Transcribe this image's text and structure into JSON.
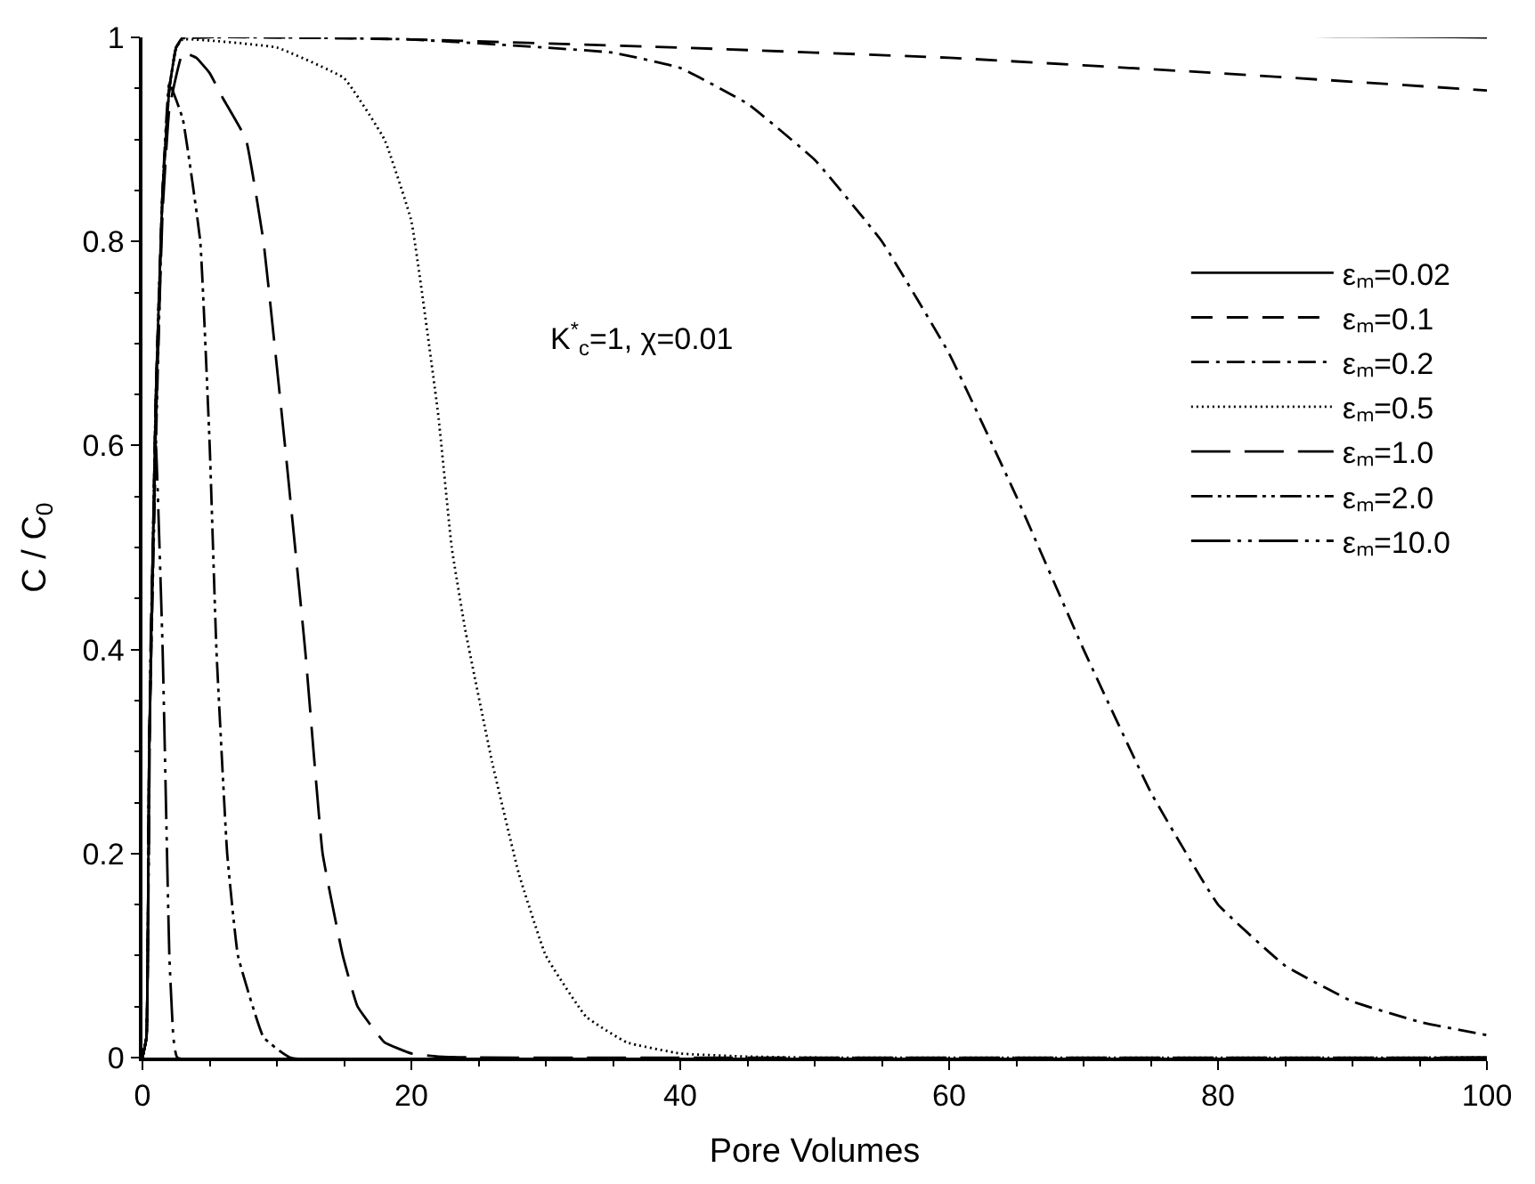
{
  "chart_data": {
    "type": "line",
    "xlabel": "Pore Volumes",
    "ylabel": "C / C$_{0}$",
    "xlim": [
      0,
      100
    ],
    "xticks": [
      0,
      20,
      40,
      60,
      80,
      100
    ],
    "ylim": [
      0,
      1
    ],
    "yticks": [
      0,
      0.2,
      0.4,
      0.6,
      0.8,
      1
    ],
    "legend": "right",
    "marker": "none",
    "annotations": [
      "K$^{*}$$_{c}$=1, χ=0.01"
    ],
    "series": [
      {
        "name": "εₘ=0.02",
        "color": "#000000",
        "line_style": "solid",
        "x": [
          0,
          0.3,
          0.5,
          1,
          1.5,
          2,
          2.5,
          3,
          100
        ],
        "values": [
          0,
          0.02,
          0.3,
          0.65,
          0.85,
          0.95,
          0.99,
          1,
          1
        ]
      },
      {
        "name": "εₘ=0.1",
        "color": "#000000",
        "line_style": "dashed",
        "x": [
          0,
          0.3,
          0.5,
          1,
          1.5,
          2,
          2.5,
          3,
          20,
          40,
          60,
          80,
          100
        ],
        "values": [
          0,
          0.02,
          0.3,
          0.65,
          0.85,
          0.95,
          0.99,
          0.999,
          0.998,
          0.99,
          0.98,
          0.965,
          0.948
        ]
      },
      {
        "name": "εₘ=0.2",
        "color": "#000000",
        "line_style": "dashdot",
        "x": [
          0,
          0.3,
          0.5,
          1,
          1.5,
          2,
          2.5,
          3,
          10,
          20,
          30,
          35,
          40,
          45,
          50,
          55,
          60,
          65,
          70,
          75,
          80,
          85,
          90,
          95,
          100
        ],
        "values": [
          0,
          0.02,
          0.3,
          0.65,
          0.85,
          0.95,
          0.99,
          0.999,
          1,
          0.998,
          0.99,
          0.985,
          0.97,
          0.935,
          0.88,
          0.8,
          0.69,
          0.55,
          0.4,
          0.26,
          0.15,
          0.09,
          0.055,
          0.035,
          0.022
        ]
      },
      {
        "name": "εₘ=0.5",
        "color": "#000000",
        "line_style": "dotted",
        "x": [
          0,
          0.3,
          0.5,
          1,
          1.5,
          2,
          2.5,
          3,
          10,
          15,
          18,
          20,
          22,
          23,
          24,
          26,
          28,
          30,
          33,
          36,
          40,
          45,
          50,
          100
        ],
        "values": [
          0,
          0.02,
          0.3,
          0.65,
          0.85,
          0.95,
          0.99,
          0.998,
          0.99,
          0.96,
          0.9,
          0.82,
          0.63,
          0.5,
          0.42,
          0.29,
          0.18,
          0.1,
          0.04,
          0.015,
          0.004,
          0.001,
          0,
          0
        ]
      },
      {
        "name": "εₘ=1.0",
        "color": "#000000",
        "line_style": "longdash",
        "x": [
          0,
          0.3,
          0.5,
          1,
          1.5,
          2,
          3,
          4,
          5,
          6,
          7.7,
          9,
          10.6,
          12.1,
          13.4,
          14.9,
          16,
          18,
          20,
          22,
          25,
          100
        ],
        "values": [
          0,
          0.02,
          0.3,
          0.62,
          0.83,
          0.93,
          0.985,
          0.98,
          0.965,
          0.94,
          0.9,
          0.8,
          0.6,
          0.4,
          0.2,
          0.1,
          0.05,
          0.015,
          0.004,
          0.001,
          0,
          0
        ]
      },
      {
        "name": "εₘ=2.0",
        "color": "#000000",
        "line_style": "dashdotdot",
        "x": [
          0,
          0.3,
          0.5,
          1,
          1.5,
          2,
          3,
          4.3,
          5,
          5.5,
          6.3,
          7.1,
          9,
          11,
          100
        ],
        "values": [
          0,
          0.02,
          0.3,
          0.6,
          0.85,
          0.955,
          0.92,
          0.8,
          0.6,
          0.4,
          0.2,
          0.1,
          0.02,
          0,
          0
        ]
      },
      {
        "name": "εₘ=10.0",
        "color": "#000000",
        "line_style": "longdashdotdot",
        "x": [
          0,
          0.3,
          0.6,
          1,
          1.5,
          2,
          2.3,
          2.6,
          100
        ],
        "values": [
          0,
          0.02,
          0.4,
          0.6,
          0.4,
          0.1,
          0.02,
          0,
          0
        ]
      }
    ]
  }
}
